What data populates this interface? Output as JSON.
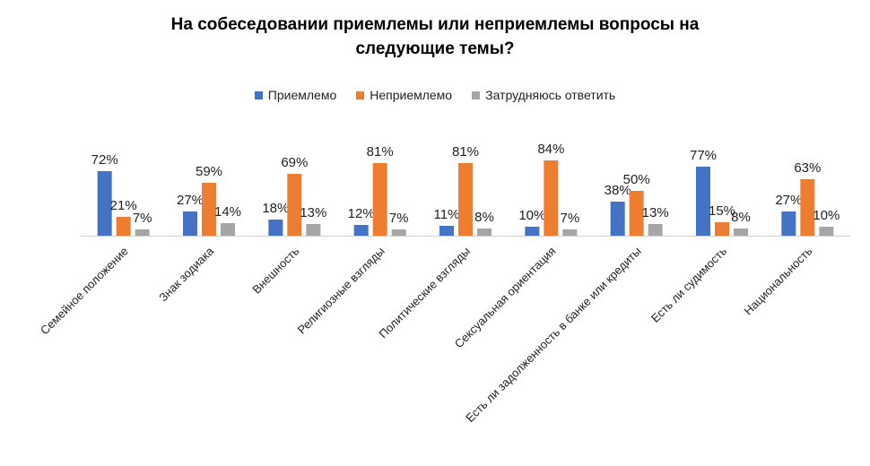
{
  "chart_data": {
    "type": "bar",
    "title_line1": "На собеседовании приемлемы или неприемлемы вопросы на",
    "title_line2": "следующие темы?",
    "categories": [
      "Семейное положение",
      "Знак зодиака",
      "Внешность",
      "Религиозные взгляды",
      "Политические взгляды",
      "Сексуальная ориентация",
      "Есть ли задолженность в банке или кредиты",
      "Есть ли судимость",
      "Национальность"
    ],
    "series": [
      {
        "name": "Приемлемо",
        "color": "#4472C4",
        "values": [
          72,
          27,
          18,
          12,
          11,
          10,
          38,
          77,
          27
        ]
      },
      {
        "name": "Неприемлемо",
        "color": "#ED7D31",
        "values": [
          21,
          59,
          69,
          81,
          81,
          84,
          50,
          15,
          63
        ]
      },
      {
        "name": "Затрудняюсь ответить",
        "color": "#A5A5A5",
        "values": [
          7,
          14,
          13,
          7,
          8,
          7,
          13,
          8,
          10
        ]
      }
    ],
    "value_suffix": "%",
    "ylim": [
      0,
      100
    ],
    "legend_position": "top",
    "grid": false
  }
}
